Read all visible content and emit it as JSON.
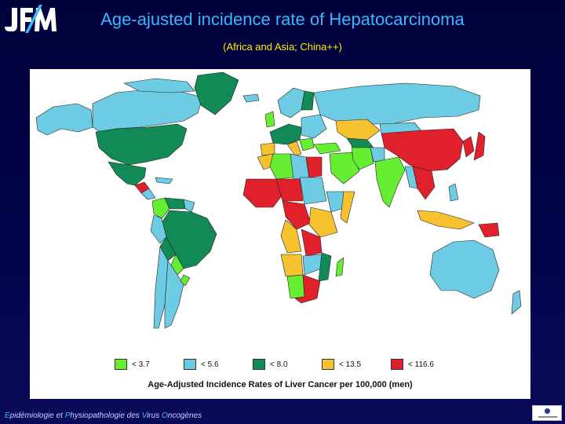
{
  "header": {
    "logo_text": "JFM",
    "title": "Age-ajusted incidence rate of Hepatocarcinoma",
    "subtitle": "(Africa and Asia; China++)"
  },
  "legend": {
    "items": [
      {
        "label": "< 3.7",
        "color": "#66ee33"
      },
      {
        "label": "< 5.6",
        "color": "#6ecbe4"
      },
      {
        "label": "< 8.0",
        "color": "#118a55"
      },
      {
        "label": "< 13.5",
        "color": "#f7c230"
      },
      {
        "label": "< 116.6",
        "color": "#e0202a"
      }
    ]
  },
  "caption": "Age-Adjusted Incidence Rates of Liver Cancer per 100,000 (men)",
  "footer": {
    "e": "E",
    "e_rest": "pidémiologie et ",
    "p": "P",
    "p_rest": "hysiopathologie des ",
    "v": "V",
    "v_rest": "irus ",
    "o": "O",
    "o_rest": "ncogènes"
  },
  "colors": {
    "background": "#02023f",
    "title": "#39b7ff",
    "subtitle": "#ffee00"
  }
}
